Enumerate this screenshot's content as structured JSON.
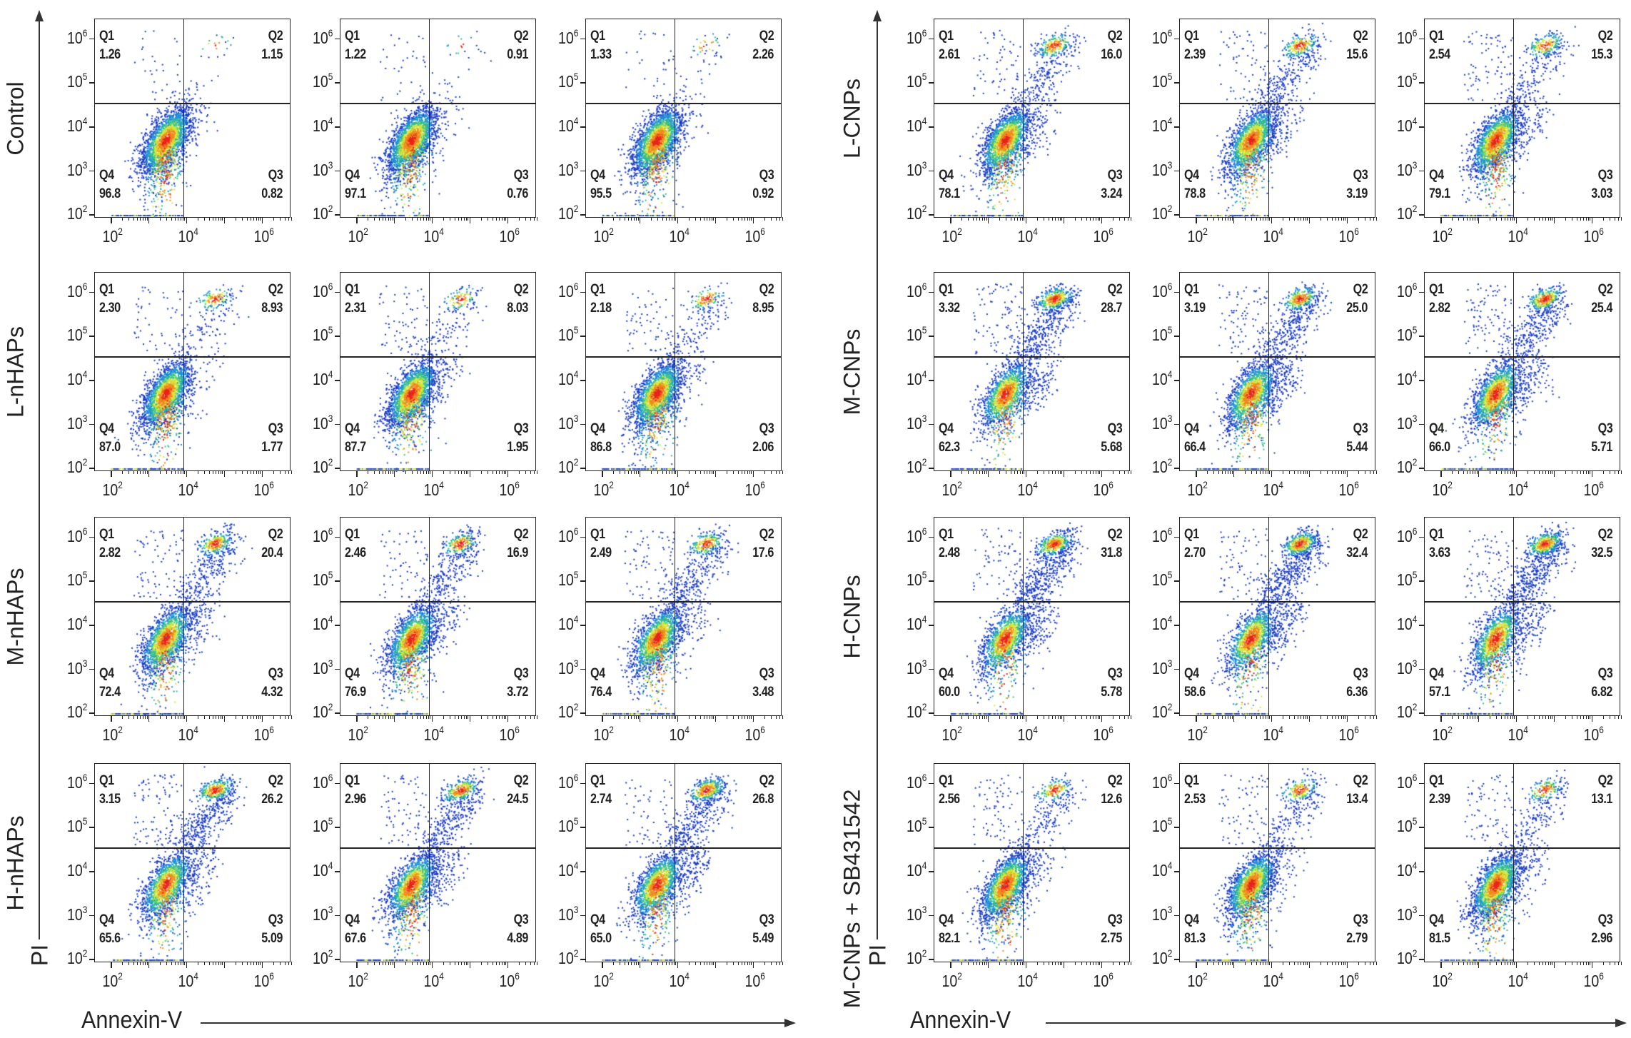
{
  "chart_data": {
    "type": "scatter",
    "title": "",
    "xlabel": "Annexin-V",
    "ylabel": "PI",
    "axis_base": "10",
    "x_ticks": [
      "2",
      "4",
      "6"
    ],
    "y_ticks": [
      "6",
      "5",
      "4",
      "3",
      "2"
    ],
    "xlim_log10": [
      1.6,
      6.8
    ],
    "ylim_log10": [
      1.95,
      6.4
    ],
    "quadrant_labels": [
      "Q1",
      "Q2",
      "Q3",
      "Q4"
    ],
    "groups": [
      {
        "label": "Control",
        "replicates": [
          {
            "Q1": "1.26",
            "Q2": "1.15",
            "Q3": "0.82",
            "Q4": "96.8"
          },
          {
            "Q1": "1.22",
            "Q2": "0.91",
            "Q3": "0.76",
            "Q4": "97.1"
          },
          {
            "Q1": "1.33",
            "Q2": "2.26",
            "Q3": "0.92",
            "Q4": "95.5"
          }
        ]
      },
      {
        "label": "L-nHAPs",
        "replicates": [
          {
            "Q1": "2.30",
            "Q2": "8.93",
            "Q3": "1.77",
            "Q4": "87.0"
          },
          {
            "Q1": "2.31",
            "Q2": "8.03",
            "Q3": "1.95",
            "Q4": "87.7"
          },
          {
            "Q1": "2.18",
            "Q2": "8.95",
            "Q3": "2.06",
            "Q4": "86.8"
          }
        ]
      },
      {
        "label": "M-nHAPs",
        "replicates": [
          {
            "Q1": "2.82",
            "Q2": "20.4",
            "Q3": "4.32",
            "Q4": "72.4"
          },
          {
            "Q1": "2.46",
            "Q2": "16.9",
            "Q3": "3.72",
            "Q4": "76.9"
          },
          {
            "Q1": "2.49",
            "Q2": "17.6",
            "Q3": "3.48",
            "Q4": "76.4"
          }
        ]
      },
      {
        "label": "H-nHAPs",
        "replicates": [
          {
            "Q1": "3.15",
            "Q2": "26.2",
            "Q3": "5.09",
            "Q4": "65.6"
          },
          {
            "Q1": "2.96",
            "Q2": "24.5",
            "Q3": "4.89",
            "Q4": "67.6"
          },
          {
            "Q1": "2.74",
            "Q2": "26.8",
            "Q3": "5.49",
            "Q4": "65.0"
          }
        ]
      },
      {
        "label": "L-CNPs",
        "replicates": [
          {
            "Q1": "2.61",
            "Q2": "16.0",
            "Q3": "3.24",
            "Q4": "78.1"
          },
          {
            "Q1": "2.39",
            "Q2": "15.6",
            "Q3": "3.19",
            "Q4": "78.8"
          },
          {
            "Q1": "2.54",
            "Q2": "15.3",
            "Q3": "3.03",
            "Q4": "79.1"
          }
        ]
      },
      {
        "label": "M-CNPs",
        "replicates": [
          {
            "Q1": "3.32",
            "Q2": "28.7",
            "Q3": "5.68",
            "Q4": "62.3"
          },
          {
            "Q1": "3.19",
            "Q2": "25.0",
            "Q3": "5.44",
            "Q4": "66.4"
          },
          {
            "Q1": "2.82",
            "Q2": "25.4",
            "Q3": "5.71",
            "Q4": "66.0"
          }
        ]
      },
      {
        "label": "H-CNPs",
        "replicates": [
          {
            "Q1": "2.48",
            "Q2": "31.8",
            "Q3": "5.78",
            "Q4": "60.0"
          },
          {
            "Q1": "2.70",
            "Q2": "32.4",
            "Q3": "6.36",
            "Q4": "58.6"
          },
          {
            "Q1": "3.63",
            "Q2": "32.5",
            "Q3": "6.82",
            "Q4": "57.1"
          }
        ]
      },
      {
        "label": "M-CNPs + SB431542",
        "replicates": [
          {
            "Q1": "2.56",
            "Q2": "12.6",
            "Q3": "2.75",
            "Q4": "82.1"
          },
          {
            "Q1": "2.53",
            "Q2": "13.4",
            "Q3": "2.79",
            "Q4": "81.3"
          },
          {
            "Q1": "2.39",
            "Q2": "13.1",
            "Q3": "2.96",
            "Q4": "81.5"
          }
        ]
      }
    ],
    "density_colors": [
      "#1a3cc8",
      "#1e8fd6",
      "#36c28a",
      "#d7e63a",
      "#f08a1e",
      "#e8231c"
    ]
  }
}
